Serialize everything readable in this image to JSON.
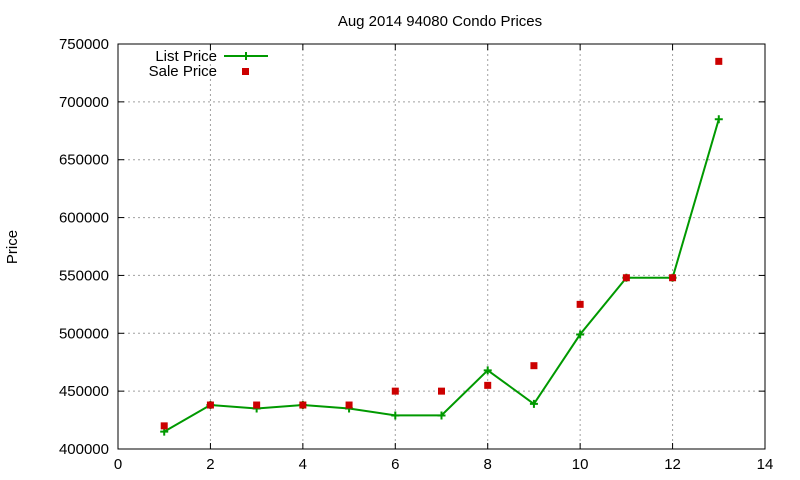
{
  "chart_data": {
    "type": "line",
    "title": "Aug 2014 94080 Condo Prices",
    "xlabel": "",
    "ylabel": "Price",
    "xlim": [
      0,
      14
    ],
    "ylim": [
      400000,
      750000
    ],
    "x_ticks": [
      0,
      2,
      4,
      6,
      8,
      10,
      12,
      14
    ],
    "y_ticks": [
      400000,
      450000,
      500000,
      550000,
      600000,
      650000,
      700000,
      750000
    ],
    "grid": true,
    "legend_position": "top-left",
    "x": [
      1,
      2,
      3,
      4,
      5,
      6,
      7,
      8,
      9,
      10,
      11,
      12,
      13
    ],
    "series": [
      {
        "name": "List Price",
        "style": "line-points",
        "marker": "plus",
        "color": "#009900",
        "values": [
          415000,
          438000,
          435000,
          438000,
          435000,
          429000,
          429000,
          468000,
          439000,
          499000,
          548000,
          548000,
          685000
        ]
      },
      {
        "name": "Sale Price",
        "style": "points",
        "marker": "square",
        "color": "#cc0000",
        "values": [
          420000,
          438000,
          438000,
          438000,
          438000,
          450000,
          450000,
          455000,
          472000,
          525000,
          548000,
          548000,
          735000
        ]
      }
    ]
  }
}
